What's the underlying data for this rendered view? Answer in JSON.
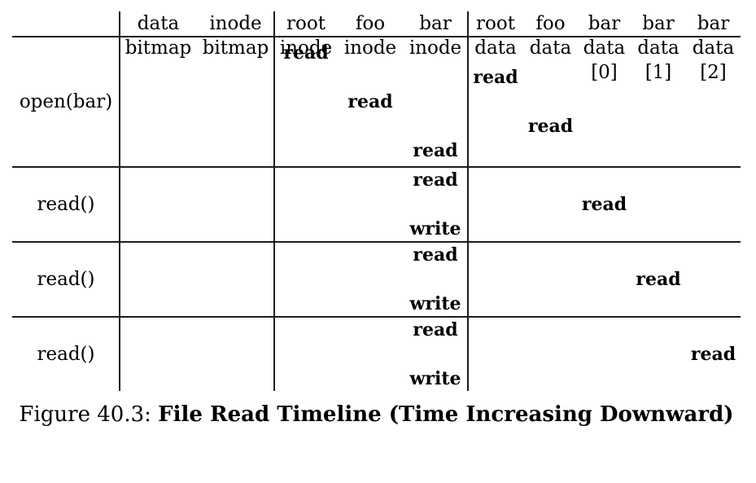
{
  "figure": {
    "caption_prefix": "Figure 40.3: ",
    "caption_title": "File Read Timeline (Time Increasing Downward)"
  },
  "table": {
    "columns": [
      {
        "id": "data-bitmap",
        "lines": [
          "data",
          "bitmap"
        ]
      },
      {
        "id": "inode-bitmap",
        "lines": [
          "inode",
          "bitmap"
        ]
      },
      {
        "id": "root-inode",
        "lines": [
          "root",
          "inode"
        ]
      },
      {
        "id": "foo-inode",
        "lines": [
          "foo",
          "inode"
        ]
      },
      {
        "id": "bar-inode",
        "lines": [
          "bar",
          "inode"
        ]
      },
      {
        "id": "root-data",
        "lines": [
          "root",
          "data"
        ]
      },
      {
        "id": "foo-data",
        "lines": [
          "foo",
          "data"
        ]
      },
      {
        "id": "bar-data-0",
        "lines": [
          "bar",
          "data",
          "[0]"
        ]
      },
      {
        "id": "bar-data-1",
        "lines": [
          "bar",
          "data",
          "[1]"
        ]
      },
      {
        "id": "bar-data-2",
        "lines": [
          "bar",
          "data",
          "[2]"
        ]
      }
    ],
    "rows": [
      {
        "label": "open(bar)",
        "events": [
          {
            "column": "root-inode",
            "op": "read"
          },
          {
            "column": "root-data",
            "op": "read"
          },
          {
            "column": "foo-inode",
            "op": "read"
          },
          {
            "column": "foo-data",
            "op": "read"
          },
          {
            "column": "bar-inode",
            "op": "read"
          }
        ]
      },
      {
        "label": "read()",
        "events": [
          {
            "column": "bar-inode",
            "op": "read"
          },
          {
            "column": "bar-data-0",
            "op": "read"
          },
          {
            "column": "bar-inode",
            "op": "write"
          }
        ]
      },
      {
        "label": "read()",
        "events": [
          {
            "column": "bar-inode",
            "op": "read"
          },
          {
            "column": "bar-data-1",
            "op": "read"
          },
          {
            "column": "bar-inode",
            "op": "write"
          }
        ]
      },
      {
        "label": "read()",
        "events": [
          {
            "column": "bar-inode",
            "op": "read"
          },
          {
            "column": "bar-data-2",
            "op": "read"
          },
          {
            "column": "bar-inode",
            "op": "write"
          }
        ]
      }
    ]
  }
}
